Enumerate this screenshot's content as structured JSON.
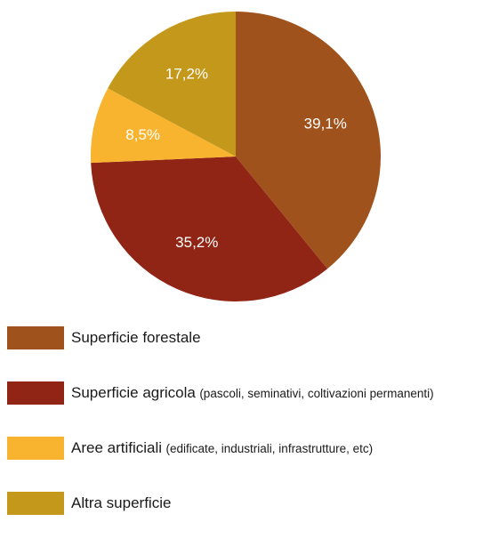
{
  "chart_data": {
    "type": "pie",
    "slices": [
      {
        "value_label": "39,1%",
        "value": 39.1,
        "color": "#A0521C"
      },
      {
        "value_label": "35,2%",
        "value": 35.2,
        "color": "#912515"
      },
      {
        "value_label": "8,5%",
        "value": 8.5,
        "color": "#F8B32F"
      },
      {
        "value_label": "17,2%",
        "value": 17.2,
        "color": "#C4981A"
      }
    ],
    "legend": [
      {
        "name": "Superficie forestale",
        "detail": "",
        "color": "#A0521C"
      },
      {
        "name": "Superficie agricola",
        "detail": "(pascoli, seminativi, coltivazioni permanenti)",
        "color": "#912515"
      },
      {
        "name": "Aree artificiali",
        "detail": "(edificate, industriali, infrastrutture, etc)",
        "color": "#F8B32F"
      },
      {
        "name": "Altra superficie",
        "detail": "",
        "color": "#C4981A"
      }
    ]
  }
}
